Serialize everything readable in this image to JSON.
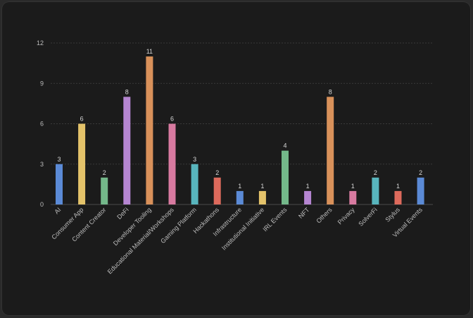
{
  "chart_data": {
    "type": "bar",
    "categories": [
      "AI",
      "Consumer App",
      "Content Creator",
      "DeFi",
      "Developer Tooling",
      "Educational Material/Workshops",
      "Gaming Platform",
      "Hackathons",
      "Infrastructure",
      "Institutional Initiative",
      "IRL Events",
      "NFT",
      "Others",
      "Privacy",
      "SolverFi",
      "Stylus",
      "Virtual Events"
    ],
    "values": [
      3,
      6,
      2,
      8,
      11,
      6,
      3,
      2,
      1,
      1,
      4,
      1,
      8,
      1,
      2,
      1,
      2
    ],
    "data_labels": [
      "3",
      "6",
      "2",
      "8",
      "11",
      "6",
      "3",
      "2",
      "1",
      "1",
      "4",
      "1",
      "8",
      "1",
      "2",
      "1",
      "2"
    ],
    "yticks": [
      "0",
      "3",
      "6",
      "9",
      "12"
    ],
    "ylim": [
      0,
      12
    ],
    "grid": true,
    "colors": [
      "#5b8ad6",
      "#e4c36a",
      "#74b88a",
      "#b585d1",
      "#d9915a",
      "#d87aa0",
      "#58b5bd",
      "#dd6a5c",
      "#5b8ad6",
      "#e4c36a",
      "#74b88a",
      "#b585d1",
      "#d9915a",
      "#d87aa0",
      "#58b5bd",
      "#dd6a5c",
      "#5b8ad6"
    ],
    "title": "",
    "xlabel": "",
    "ylabel": ""
  }
}
